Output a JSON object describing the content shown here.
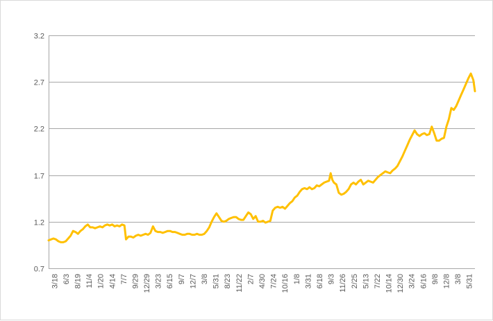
{
  "chart_data": {
    "type": "line",
    "title": "",
    "xlabel": "",
    "ylabel": "",
    "ylim": [
      0.7,
      3.2
    ],
    "yticks": [
      "3.2",
      "2.7",
      "2.2",
      "1.7",
      "1.2",
      "0.7"
    ],
    "ytick_values": [
      3.2,
      2.7,
      2.2,
      1.7,
      1.2,
      0.7
    ],
    "grid": true,
    "legend": "none",
    "line_color": "#FFC000",
    "grid_color": "#a6a6a6",
    "x_tick_labels": [
      "3/18",
      "6/3",
      "8/19",
      "11/4",
      "1/20",
      "4/14",
      "7/7",
      "9/29",
      "12/29",
      "3/23",
      "6/15",
      "9/7",
      "12/7",
      "3/8",
      "5/31",
      "8/23",
      "11/22",
      "2/7",
      "4/30",
      "7/24",
      "10/16",
      "1/8",
      "3/31",
      "6/18",
      "9/3",
      "11/26",
      "2/25",
      "5/13",
      "7/22",
      "10/14",
      "12/30",
      "3/24",
      "6/16",
      "9/8",
      "12/8",
      "3/8",
      "5/31"
    ],
    "series": [
      {
        "values": [
          [
            0,
            1.0
          ],
          [
            3,
            1.01
          ],
          [
            6,
            1.02
          ],
          [
            9,
            1.01
          ],
          [
            12,
            0.99
          ],
          [
            15,
            0.98
          ],
          [
            18,
            0.98
          ],
          [
            21,
            0.99
          ],
          [
            24,
            1.02
          ],
          [
            27,
            1.05
          ],
          [
            30,
            1.1
          ],
          [
            33,
            1.09
          ],
          [
            36,
            1.07
          ],
          [
            39,
            1.1
          ],
          [
            42,
            1.12
          ],
          [
            45,
            1.15
          ],
          [
            48,
            1.17
          ],
          [
            51,
            1.14
          ],
          [
            54,
            1.14
          ],
          [
            57,
            1.13
          ],
          [
            60,
            1.14
          ],
          [
            63,
            1.15
          ],
          [
            66,
            1.14
          ],
          [
            69,
            1.16
          ],
          [
            72,
            1.17
          ],
          [
            75,
            1.16
          ],
          [
            78,
            1.17
          ],
          [
            81,
            1.15
          ],
          [
            84,
            1.16
          ],
          [
            87,
            1.15
          ],
          [
            90,
            1.17
          ],
          [
            93,
            1.16
          ],
          [
            95,
            1.01
          ],
          [
            98,
            1.04
          ],
          [
            101,
            1.04
          ],
          [
            104,
            1.03
          ],
          [
            107,
            1.05
          ],
          [
            110,
            1.06
          ],
          [
            113,
            1.05
          ],
          [
            116,
            1.06
          ],
          [
            119,
            1.07
          ],
          [
            122,
            1.06
          ],
          [
            125,
            1.08
          ],
          [
            128,
            1.15
          ],
          [
            131,
            1.1
          ],
          [
            134,
            1.09
          ],
          [
            137,
            1.09
          ],
          [
            140,
            1.08
          ],
          [
            143,
            1.09
          ],
          [
            146,
            1.1
          ],
          [
            149,
            1.1
          ],
          [
            152,
            1.09
          ],
          [
            155,
            1.09
          ],
          [
            158,
            1.08
          ],
          [
            161,
            1.07
          ],
          [
            164,
            1.06
          ],
          [
            167,
            1.06
          ],
          [
            170,
            1.07
          ],
          [
            173,
            1.07
          ],
          [
            176,
            1.06
          ],
          [
            179,
            1.06
          ],
          [
            182,
            1.07
          ],
          [
            185,
            1.06
          ],
          [
            188,
            1.06
          ],
          [
            191,
            1.07
          ],
          [
            194,
            1.1
          ],
          [
            197,
            1.14
          ],
          [
            200,
            1.2
          ],
          [
            203,
            1.25
          ],
          [
            206,
            1.29
          ],
          [
            209,
            1.25
          ],
          [
            212,
            1.21
          ],
          [
            215,
            1.2
          ],
          [
            218,
            1.21
          ],
          [
            221,
            1.23
          ],
          [
            224,
            1.24
          ],
          [
            227,
            1.25
          ],
          [
            230,
            1.25
          ],
          [
            233,
            1.23
          ],
          [
            236,
            1.22
          ],
          [
            239,
            1.22
          ],
          [
            242,
            1.26
          ],
          [
            245,
            1.3
          ],
          [
            248,
            1.28
          ],
          [
            251,
            1.23
          ],
          [
            254,
            1.26
          ],
          [
            257,
            1.2
          ],
          [
            260,
            1.2
          ],
          [
            263,
            1.21
          ],
          [
            266,
            1.19
          ],
          [
            269,
            1.2
          ],
          [
            272,
            1.21
          ],
          [
            275,
            1.32
          ],
          [
            278,
            1.35
          ],
          [
            281,
            1.36
          ],
          [
            284,
            1.35
          ],
          [
            287,
            1.36
          ],
          [
            290,
            1.34
          ],
          [
            293,
            1.37
          ],
          [
            296,
            1.4
          ],
          [
            299,
            1.42
          ],
          [
            302,
            1.46
          ],
          [
            305,
            1.48
          ],
          [
            308,
            1.52
          ],
          [
            311,
            1.55
          ],
          [
            314,
            1.56
          ],
          [
            317,
            1.55
          ],
          [
            320,
            1.57
          ],
          [
            323,
            1.55
          ],
          [
            326,
            1.56
          ],
          [
            329,
            1.59
          ],
          [
            332,
            1.58
          ],
          [
            335,
            1.6
          ],
          [
            338,
            1.62
          ],
          [
            341,
            1.63
          ],
          [
            344,
            1.64
          ],
          [
            346,
            1.72
          ],
          [
            348,
            1.65
          ],
          [
            350,
            1.62
          ],
          [
            353,
            1.6
          ],
          [
            356,
            1.51
          ],
          [
            359,
            1.49
          ],
          [
            362,
            1.5
          ],
          [
            365,
            1.52
          ],
          [
            368,
            1.55
          ],
          [
            371,
            1.6
          ],
          [
            374,
            1.62
          ],
          [
            377,
            1.6
          ],
          [
            380,
            1.63
          ],
          [
            383,
            1.65
          ],
          [
            386,
            1.6
          ],
          [
            389,
            1.62
          ],
          [
            392,
            1.64
          ],
          [
            395,
            1.63
          ],
          [
            398,
            1.62
          ],
          [
            401,
            1.65
          ],
          [
            404,
            1.68
          ],
          [
            407,
            1.7
          ],
          [
            410,
            1.72
          ],
          [
            413,
            1.74
          ],
          [
            416,
            1.73
          ],
          [
            419,
            1.72
          ],
          [
            422,
            1.75
          ],
          [
            425,
            1.77
          ],
          [
            428,
            1.8
          ],
          [
            431,
            1.85
          ],
          [
            434,
            1.9
          ],
          [
            437,
            1.96
          ],
          [
            440,
            2.02
          ],
          [
            443,
            2.08
          ],
          [
            446,
            2.13
          ],
          [
            449,
            2.18
          ],
          [
            452,
            2.14
          ],
          [
            455,
            2.12
          ],
          [
            458,
            2.14
          ],
          [
            461,
            2.15
          ],
          [
            464,
            2.13
          ],
          [
            467,
            2.14
          ],
          [
            470,
            2.22
          ],
          [
            473,
            2.15
          ],
          [
            476,
            2.07
          ],
          [
            479,
            2.07
          ],
          [
            482,
            2.09
          ],
          [
            485,
            2.1
          ],
          [
            488,
            2.22
          ],
          [
            491,
            2.3
          ],
          [
            494,
            2.42
          ],
          [
            497,
            2.4
          ],
          [
            500,
            2.44
          ],
          [
            503,
            2.5
          ],
          [
            506,
            2.56
          ],
          [
            509,
            2.62
          ],
          [
            512,
            2.68
          ],
          [
            515,
            2.74
          ],
          [
            518,
            2.79
          ],
          [
            521,
            2.72
          ],
          [
            523,
            2.6
          ]
        ]
      }
    ]
  }
}
